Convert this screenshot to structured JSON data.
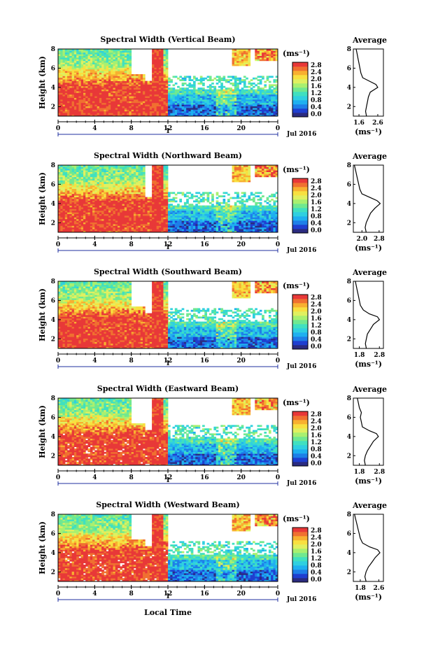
{
  "xlabel": "Local Time",
  "x_ticks": [
    "0",
    "4",
    "8",
    "12",
    "16",
    "20",
    "0"
  ],
  "date_label": "Jul 2016",
  "day_label": "1",
  "ylabel": "Height (km)",
  "y_ticks": [
    "2",
    "4",
    "6",
    "8"
  ],
  "colorbar_unit": "(ms⁻¹)",
  "colorbar_ticks": [
    "2.8",
    "2.4",
    "2.0",
    "1.6",
    "1.2",
    "0.8",
    "0.4",
    "0.0"
  ],
  "avg_title": "Average",
  "avg_xlabel": "(ms⁻¹)",
  "avg_y_ticks": [
    "2",
    "4",
    "6",
    "8"
  ],
  "colors": {
    "scale": [
      "#2b2b80",
      "#1f3fd0",
      "#1e7fe8",
      "#1fb0f0",
      "#2fd0e0",
      "#40e0c0",
      "#70e890",
      "#a8f070",
      "#e0f060",
      "#f8e040",
      "#f8b030",
      "#f07030",
      "#e83838"
    ]
  },
  "chart_data": [
    {
      "type": "heatmap",
      "title": "Spectral Width (Vertical Beam)",
      "xlim": [
        0,
        24
      ],
      "ylim": [
        1,
        8
      ],
      "clim": [
        0.0,
        3.0
      ],
      "avg": {
        "title": "Average",
        "x_ticks": [
          "1.6",
          "2.6"
        ],
        "xlim": [
          1.3,
          2.9
        ],
        "profile": [
          [
            1.0,
            2.0
          ],
          [
            1.5,
            1.95
          ],
          [
            2.0,
            2.0
          ],
          [
            2.5,
            2.05
          ],
          [
            3.0,
            2.1
          ],
          [
            3.5,
            2.2
          ],
          [
            4.0,
            2.6
          ],
          [
            4.3,
            2.5
          ],
          [
            4.6,
            2.2
          ],
          [
            5.0,
            1.8
          ],
          [
            5.5,
            1.7
          ],
          [
            6.0,
            1.65
          ],
          [
            6.5,
            1.6
          ],
          [
            7.0,
            1.55
          ],
          [
            7.5,
            1.5
          ],
          [
            8.0,
            1.45
          ]
        ]
      }
    },
    {
      "type": "heatmap",
      "title": "Spectral Width (Northward Beam)",
      "xlim": [
        0,
        24
      ],
      "ylim": [
        1,
        8
      ],
      "clim": [
        0.0,
        3.0
      ],
      "avg": {
        "title": "Average",
        "x_ticks": [
          "2.0",
          "2.8"
        ],
        "xlim": [
          1.6,
          3.0
        ],
        "profile": [
          [
            1.0,
            2.2
          ],
          [
            1.5,
            2.15
          ],
          [
            2.0,
            2.2
          ],
          [
            2.5,
            2.3
          ],
          [
            3.0,
            2.4
          ],
          [
            3.5,
            2.6
          ],
          [
            4.0,
            2.85
          ],
          [
            4.3,
            2.7
          ],
          [
            4.6,
            2.4
          ],
          [
            5.0,
            2.0
          ],
          [
            5.5,
            1.9
          ],
          [
            6.0,
            1.85
          ],
          [
            6.5,
            1.8
          ],
          [
            7.0,
            1.75
          ],
          [
            7.5,
            1.7
          ],
          [
            8.0,
            1.65
          ]
        ]
      }
    },
    {
      "type": "heatmap",
      "title": "Spectral Width (Southward Beam)",
      "xlim": [
        0,
        24
      ],
      "ylim": [
        1,
        8
      ],
      "clim": [
        0.0,
        3.0
      ],
      "avg": {
        "title": "Average",
        "x_ticks": [
          "1.8",
          "2.8"
        ],
        "xlim": [
          1.5,
          3.0
        ],
        "profile": [
          [
            1.0,
            2.15
          ],
          [
            1.5,
            2.1
          ],
          [
            2.0,
            2.15
          ],
          [
            2.5,
            2.2
          ],
          [
            3.0,
            2.35
          ],
          [
            3.5,
            2.5
          ],
          [
            4.0,
            2.8
          ],
          [
            4.3,
            2.7
          ],
          [
            4.6,
            2.3
          ],
          [
            5.0,
            2.0
          ],
          [
            5.5,
            1.85
          ],
          [
            6.0,
            1.8
          ],
          [
            6.5,
            1.75
          ],
          [
            7.0,
            1.7
          ],
          [
            7.5,
            1.65
          ],
          [
            8.0,
            1.6
          ]
        ]
      }
    },
    {
      "type": "heatmap",
      "title": "Spectral Width (Eastward Beam)",
      "xlim": [
        0,
        24
      ],
      "ylim": [
        1,
        8
      ],
      "clim": [
        0.0,
        3.0
      ],
      "avg": {
        "title": "Average",
        "x_ticks": [
          "1.8",
          "2.8"
        ],
        "xlim": [
          1.5,
          3.0
        ],
        "profile": [
          [
            1.0,
            2.1
          ],
          [
            1.5,
            2.05
          ],
          [
            2.0,
            2.1
          ],
          [
            2.5,
            2.2
          ],
          [
            3.0,
            2.35
          ],
          [
            3.5,
            2.5
          ],
          [
            4.0,
            2.75
          ],
          [
            4.3,
            2.65
          ],
          [
            4.6,
            2.3
          ],
          [
            5.0,
            1.95
          ],
          [
            5.5,
            1.9
          ],
          [
            6.0,
            1.85
          ],
          [
            6.5,
            1.9
          ],
          [
            7.0,
            1.8
          ],
          [
            7.5,
            1.75
          ],
          [
            8.0,
            1.7
          ]
        ]
      }
    },
    {
      "type": "heatmap",
      "title": "Spectral Width (Westward Beam)",
      "xlim": [
        0,
        24
      ],
      "ylim": [
        1,
        8
      ],
      "clim": [
        0.0,
        3.0
      ],
      "avg": {
        "title": "Average",
        "x_ticks": [
          "1.8",
          "2.6"
        ],
        "xlim": [
          1.5,
          2.8
        ],
        "profile": [
          [
            1.0,
            2.05
          ],
          [
            1.5,
            2.0
          ],
          [
            2.0,
            2.05
          ],
          [
            2.5,
            2.15
          ],
          [
            3.0,
            2.3
          ],
          [
            3.5,
            2.45
          ],
          [
            4.0,
            2.65
          ],
          [
            4.3,
            2.55
          ],
          [
            4.6,
            2.2
          ],
          [
            5.0,
            1.9
          ],
          [
            5.5,
            1.8
          ],
          [
            6.0,
            1.75
          ],
          [
            6.5,
            1.7
          ],
          [
            7.0,
            1.65
          ],
          [
            7.5,
            1.6
          ],
          [
            8.0,
            1.55
          ]
        ]
      }
    }
  ]
}
